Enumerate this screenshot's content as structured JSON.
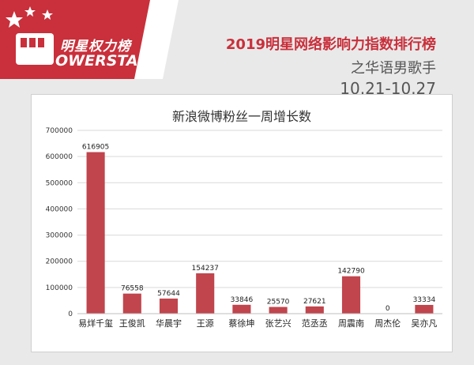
{
  "logo": {
    "line1": "明星权力榜",
    "line2": "OWERSTAR",
    "colors": {
      "panel": "#ffffff",
      "badge": "#c9303b"
    }
  },
  "header": {
    "title": "2019明星网络影响力指数排行榜",
    "subtitle": "之华语男歌手",
    "date_range": "10.21-10.27"
  },
  "chart_data": {
    "type": "bar",
    "title": "新浪微博粉丝一周增长数",
    "categories": [
      "易烊千玺",
      "王俊凯",
      "华晨宇",
      "王源",
      "蔡徐坤",
      "张艺兴",
      "范丞丞",
      "周震南",
      "周杰伦",
      "吴亦凡"
    ],
    "values": [
      616905,
      76558,
      57644,
      154237,
      33846,
      25570,
      27621,
      142790,
      0,
      33334
    ],
    "ylim": [
      0,
      700000
    ],
    "yticks": [
      0,
      100000,
      200000,
      300000,
      400000,
      500000,
      600000,
      700000
    ],
    "bar_color": "#c0454d",
    "grid": true,
    "xlabel": "",
    "ylabel": ""
  }
}
